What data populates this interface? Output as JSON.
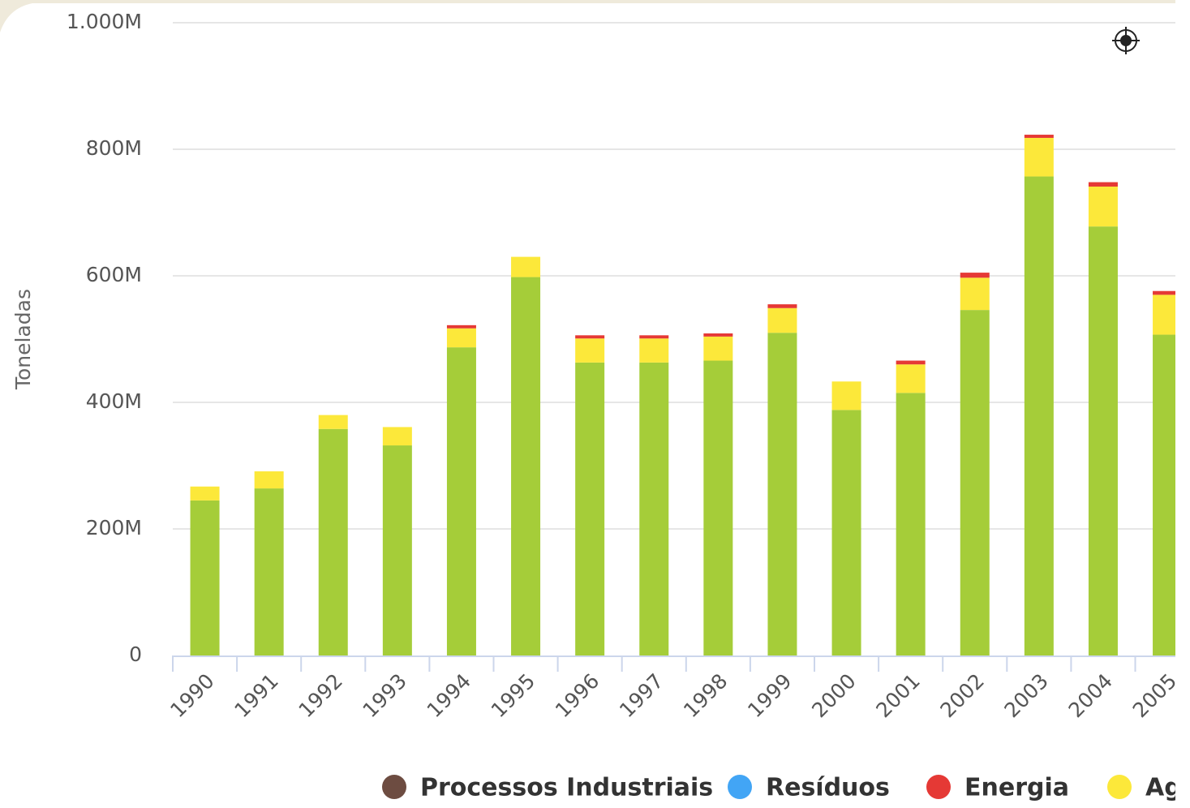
{
  "chart_data": {
    "type": "stacked-bar",
    "y_label": "Toneladas",
    "categories": [
      "1990",
      "1991",
      "1992",
      "1993",
      "1994",
      "1995",
      "1996",
      "1997",
      "1998",
      "1999",
      "2000",
      "2001",
      "2002",
      "2003",
      "2004",
      "2005"
    ],
    "series": [
      {
        "color": "#a5cd39",
        "values": [
          245,
          264,
          358,
          332,
          487,
          598,
          463,
          463,
          466,
          510,
          388,
          415,
          546,
          757,
          678,
          507
        ]
      },
      {
        "name": "Ag",
        "color": "#fce83a",
        "values": [
          22,
          27,
          22,
          29,
          30,
          32,
          38,
          38,
          38,
          39,
          45,
          45,
          51,
          61,
          63,
          63
        ]
      },
      {
        "name": "Energia",
        "color": "#e53935",
        "values": [
          0,
          0,
          0,
          0,
          5,
          0,
          5,
          5,
          5,
          6,
          0,
          6,
          8,
          5,
          7,
          6
        ]
      },
      {
        "name": "Resíduos",
        "color": "#42a5f5",
        "values": [
          0,
          0,
          0,
          0,
          0,
          0,
          0,
          0,
          0,
          0,
          0,
          0,
          0,
          0,
          0,
          0
        ]
      },
      {
        "name": "Processos Industriais",
        "color": "#6d4c41",
        "values": [
          0,
          0,
          0,
          0,
          0,
          0,
          0,
          0,
          0,
          0,
          0,
          0,
          0,
          0,
          0,
          0
        ]
      }
    ],
    "legend_order": [
      4,
      3,
      2,
      1
    ],
    "ylim": [
      0,
      1000
    ],
    "yticks": [
      {
        "value": 0,
        "label": "0"
      },
      {
        "value": 200,
        "label": "200M"
      },
      {
        "value": 400,
        "label": "400M"
      },
      {
        "value": 600,
        "label": "600M"
      },
      {
        "value": 800,
        "label": "800M"
      },
      {
        "value": 1000,
        "label": "1.000M"
      }
    ],
    "grid": true
  }
}
